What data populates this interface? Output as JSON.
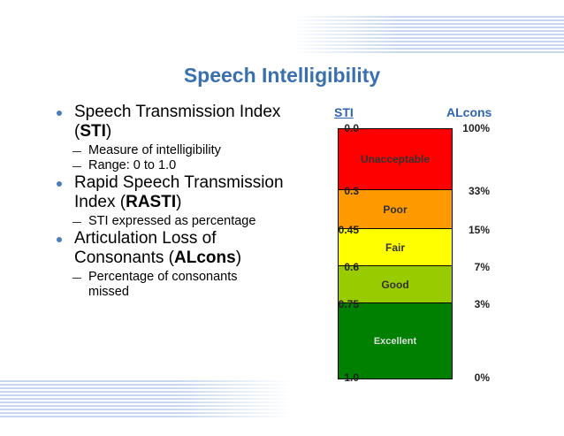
{
  "slide": {
    "title": "Speech Intelligibility",
    "bullets": [
      {
        "parts": [
          "Speech Transmission Index (",
          "STI",
          ")"
        ],
        "sub": [
          "Measure of intelligibility",
          "Range: 0 to 1.0"
        ]
      },
      {
        "parts": [
          "Rapid Speech Transmission Index (",
          "RASTI",
          ")"
        ],
        "sub": [
          "STI expressed as percentage"
        ]
      },
      {
        "parts": [
          "Articulation Loss of Consonants (",
          "ALcons",
          ")"
        ],
        "sub": [
          "Percentage of consonants missed"
        ]
      }
    ],
    "scale": {
      "left_header": "STI",
      "right_header": "ALcons",
      "bands": [
        {
          "label": "Unacceptable",
          "color": "#ff0000"
        },
        {
          "label": "Poor",
          "color": "#ff9900"
        },
        {
          "label": "Fair",
          "color": "#ffff00"
        },
        {
          "label": "Good",
          "color": "#99cc00"
        },
        {
          "label": "Excellent",
          "color": "#008000"
        }
      ],
      "sti_marks": [
        "0.0",
        "0.3",
        "0.45",
        "0.6",
        "0.75",
        "1.0"
      ],
      "alcons_marks": [
        "100%",
        "33%",
        "15%",
        "7%",
        "3%",
        "0%"
      ]
    }
  }
}
